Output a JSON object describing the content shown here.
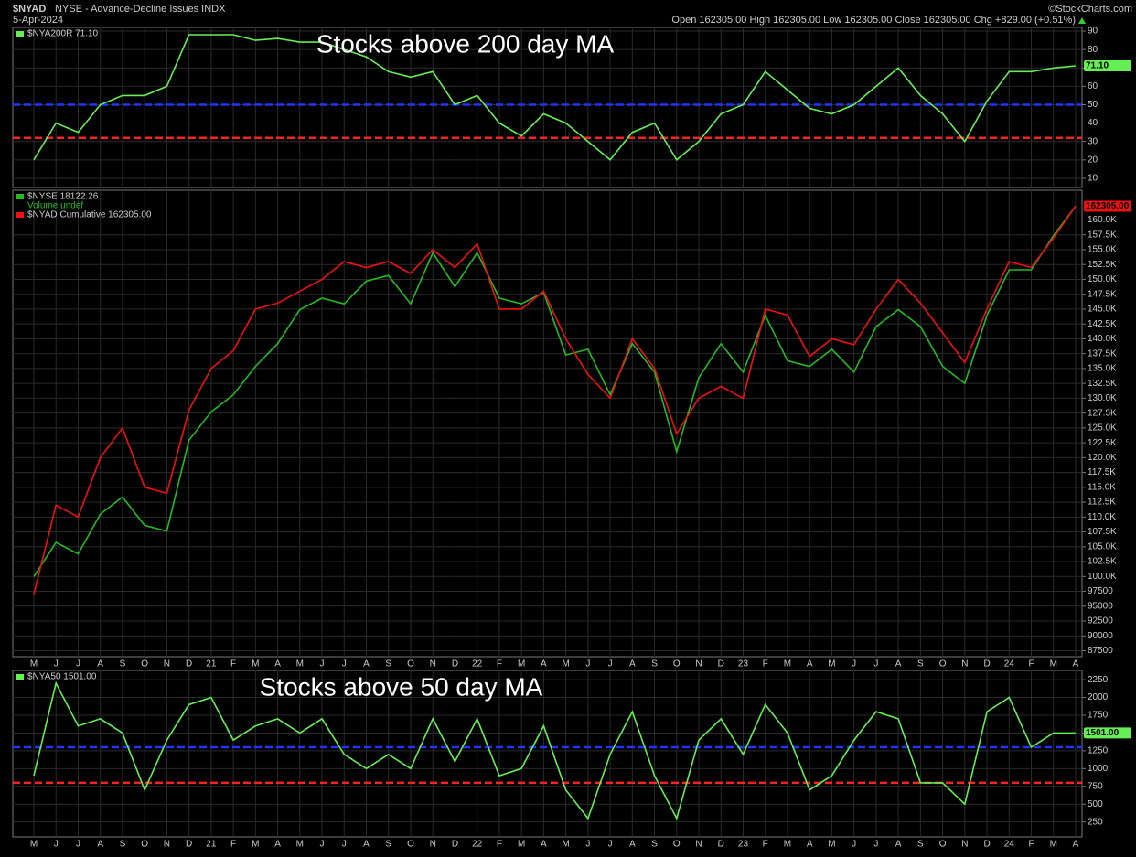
{
  "header": {
    "symbol": "$NYAD",
    "description": "NYSE - Advance-Decline Issues INDX",
    "date": "5-Apr-2024",
    "quote": "Open 162305.00  High 162305.00  Low 162305.00  Close 162305.00  Chg +829.00 (+0.51%)",
    "credit": "©StockCharts.com"
  },
  "chart_data": [
    {
      "type": "line",
      "annotation": "Stocks above 200 day MA",
      "series": [
        {
          "name": "$NYA200R 71.10",
          "color": "#66ee55",
          "last_label": "71.10",
          "values": [
            20,
            40,
            35,
            50,
            55,
            55,
            60,
            88,
            88,
            88,
            85,
            86,
            84,
            84,
            80,
            76,
            68,
            65,
            68,
            50,
            55,
            40,
            33,
            45,
            40,
            30,
            20,
            35,
            40,
            20,
            30,
            45,
            50,
            68,
            58,
            48,
            45,
            50,
            60,
            70,
            55,
            45,
            30,
            52,
            68,
            68,
            70,
            71.1
          ]
        }
      ],
      "reference_lines": [
        {
          "value": 50,
          "color": "#2233ff"
        },
        {
          "value": 32,
          "color": "#ff2222"
        }
      ],
      "ylim": [
        5,
        92
      ],
      "yticks": [
        10,
        20,
        30,
        40,
        50,
        60,
        70,
        80,
        90
      ],
      "grid": true
    },
    {
      "type": "line",
      "legend_note": "Volume undef",
      "categories": [
        "M",
        "J",
        "J",
        "A",
        "S",
        "O",
        "N",
        "D",
        "21",
        "F",
        "M",
        "A",
        "M",
        "J",
        "J",
        "A",
        "S",
        "O",
        "N",
        "D",
        "22",
        "F",
        "M",
        "A",
        "M",
        "J",
        "J",
        "A",
        "S",
        "O",
        "N",
        "D",
        "23",
        "F",
        "M",
        "A",
        "M",
        "J",
        "J",
        "A",
        "S",
        "O",
        "N",
        "D",
        "24",
        "F",
        "M",
        "A"
      ],
      "series": [
        {
          "name": "$NYSE 18122.26",
          "color": "#22bb22",
          "axis": "y2",
          "values": [
            11600,
            12200,
            12000,
            12700,
            13000,
            12500,
            12400,
            14000,
            14500,
            14800,
            15300,
            15700,
            16300,
            16500,
            16400,
            16800,
            16900,
            16400,
            17300,
            16700,
            17300,
            16500,
            16400,
            16600,
            15500,
            15600,
            14800,
            15700,
            15200,
            13800,
            15100,
            15700,
            15200,
            16200,
            15400,
            15300,
            15600,
            15200,
            16000,
            16300,
            16000,
            15300,
            15000,
            16200,
            17000,
            17000,
            17600,
            18122.26
          ]
        },
        {
          "name": "$NYAD Cumulative 162305.00",
          "color": "#ee1111",
          "last_label": "162305.00",
          "values": [
            97000,
            112000,
            110000,
            120000,
            125000,
            115000,
            114000,
            128000,
            135000,
            138000,
            145000,
            146000,
            148000,
            150000,
            153000,
            152000,
            153000,
            151000,
            155000,
            152000,
            156000,
            145000,
            145000,
            148000,
            140000,
            134000,
            130000,
            140000,
            135000,
            124000,
            130000,
            132000,
            130000,
            145000,
            144000,
            137000,
            140000,
            139000,
            145000,
            150000,
            146000,
            141000,
            136000,
            145000,
            153000,
            152000,
            157000,
            162305
          ]
        }
      ],
      "ylim": [
        86500,
        165000
      ],
      "y2lim": [
        10190,
        18400
      ],
      "yticks": [
        87500,
        90000,
        92500,
        95000,
        97500,
        {
          "value": 100000,
          "label": "100.0K"
        },
        {
          "value": 102500,
          "label": "102.5K"
        },
        {
          "value": 105000,
          "label": "105.0K"
        },
        {
          "value": 107500,
          "label": "107.5K"
        },
        {
          "value": 110000,
          "label": "110.0K"
        },
        {
          "value": 112500,
          "label": "112.5K"
        },
        {
          "value": 115000,
          "label": "115.0K"
        },
        {
          "value": 117500,
          "label": "117.5K"
        },
        {
          "value": 120000,
          "label": "120.0K"
        },
        {
          "value": 122500,
          "label": "122.5K"
        },
        {
          "value": 125000,
          "label": "125.0K"
        },
        {
          "value": 127500,
          "label": "127.5K"
        },
        {
          "value": 130000,
          "label": "130.0K"
        },
        {
          "value": 132500,
          "label": "132.5K"
        },
        {
          "value": 135000,
          "label": "135.0K"
        },
        {
          "value": 137500,
          "label": "137.5K"
        },
        {
          "value": 140000,
          "label": "140.0K"
        },
        {
          "value": 142500,
          "label": "142.5K"
        },
        {
          "value": 145000,
          "label": "145.0K"
        },
        {
          "value": 147500,
          "label": "147.5K"
        },
        {
          "value": 150000,
          "label": "150.0K"
        },
        {
          "value": 152500,
          "label": "152.5K"
        },
        {
          "value": 155000,
          "label": "155.0K"
        },
        {
          "value": 157500,
          "label": "157.5K"
        },
        {
          "value": 160000,
          "label": "160.0K"
        }
      ],
      "grid": true
    },
    {
      "type": "line",
      "annotation": "Stocks above 50 day MA",
      "categories": [
        "M",
        "J",
        "J",
        "A",
        "S",
        "O",
        "N",
        "D",
        "21",
        "F",
        "M",
        "A",
        "M",
        "J",
        "J",
        "A",
        "S",
        "O",
        "N",
        "D",
        "22",
        "F",
        "M",
        "A",
        "M",
        "J",
        "J",
        "A",
        "S",
        "O",
        "N",
        "D",
        "23",
        "F",
        "M",
        "A",
        "M",
        "J",
        "J",
        "A",
        "S",
        "O",
        "N",
        "D",
        "24",
        "F",
        "M",
        "A"
      ],
      "series": [
        {
          "name": "$NYA50 1501.00",
          "color": "#66ee55",
          "last_label": "1501.00",
          "values": [
            900,
            2200,
            1600,
            1700,
            1500,
            700,
            1400,
            1900,
            2000,
            1400,
            1600,
            1700,
            1500,
            1700,
            1200,
            1000,
            1200,
            1000,
            1700,
            1100,
            1700,
            900,
            1000,
            1600,
            700,
            300,
            1200,
            1800,
            900,
            300,
            1400,
            1700,
            1200,
            1900,
            1500,
            700,
            900,
            1400,
            1800,
            1700,
            800,
            800,
            500,
            1800,
            2000,
            1300,
            1500,
            1501
          ]
        }
      ],
      "reference_lines": [
        {
          "value": 1300,
          "color": "#2233ff"
        },
        {
          "value": 800,
          "color": "#ff2222"
        }
      ],
      "ylim": [
        40,
        2380
      ],
      "yticks": [
        250,
        500,
        750,
        1000,
        1250,
        1500,
        1750,
        2000,
        2250
      ],
      "grid": true
    }
  ]
}
